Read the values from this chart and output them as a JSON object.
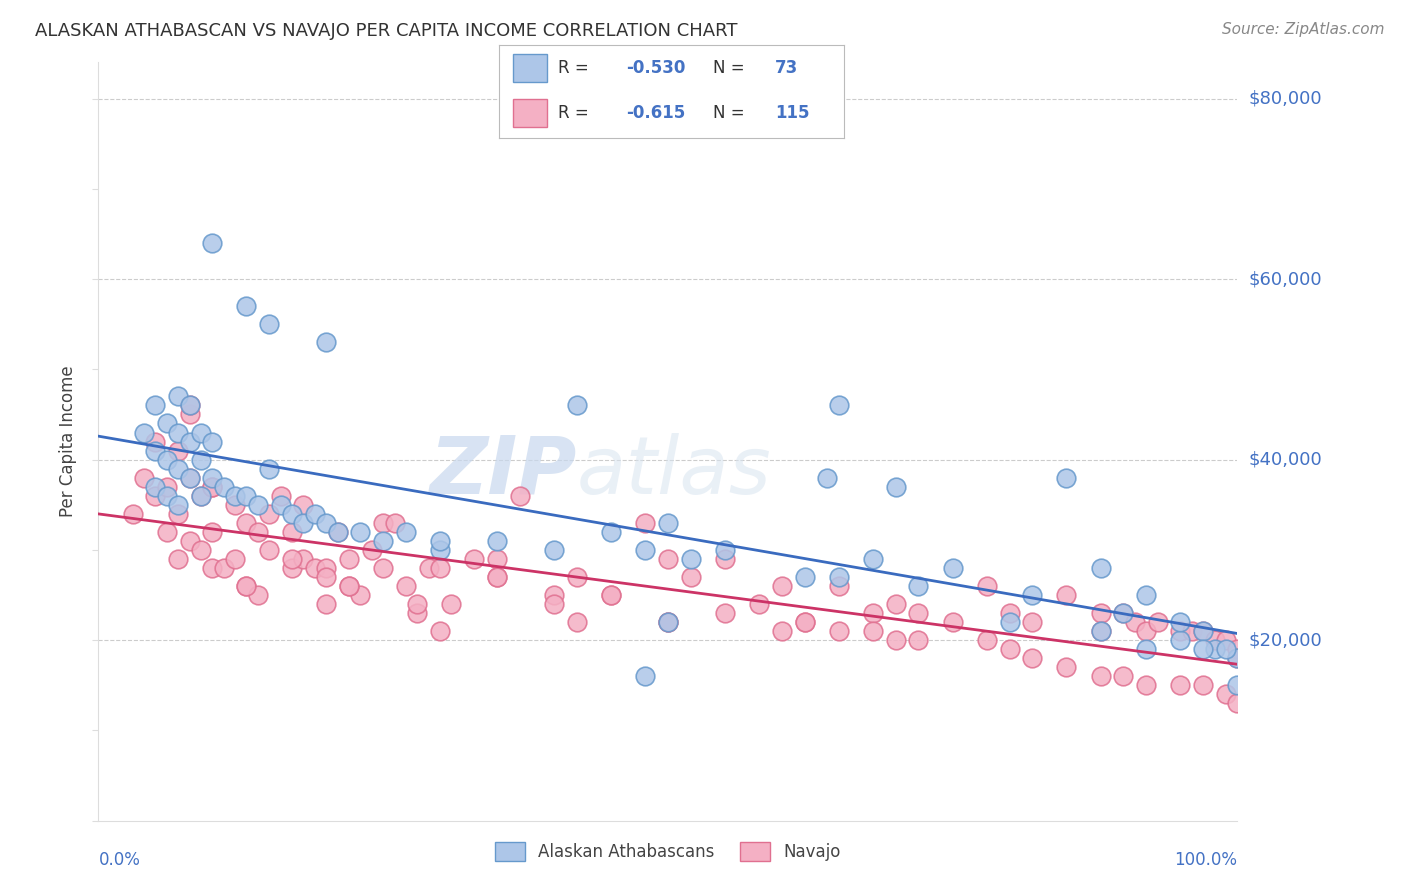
{
  "title": "ALASKAN ATHABASCAN VS NAVAJO PER CAPITA INCOME CORRELATION CHART",
  "source": "Source: ZipAtlas.com",
  "ylabel": "Per Capita Income",
  "ytick_color": "#4472c4",
  "watermark_text": "ZIPatlas",
  "blue_line_color": "#3a6bbf",
  "pink_line_color": "#cc3366",
  "scatter_blue_color": "#adc6e8",
  "scatter_pink_color": "#f4b0c4",
  "scatter_blue_edge": "#6699cc",
  "scatter_pink_edge": "#e07090",
  "blue_R": -0.53,
  "blue_N": 73,
  "pink_R": -0.615,
  "pink_N": 115,
  "blue_scatter_x": [
    0.04,
    0.05,
    0.05,
    0.05,
    0.06,
    0.06,
    0.06,
    0.07,
    0.07,
    0.07,
    0.07,
    0.08,
    0.08,
    0.08,
    0.09,
    0.09,
    0.09,
    0.1,
    0.1,
    0.11,
    0.12,
    0.13,
    0.14,
    0.15,
    0.16,
    0.17,
    0.18,
    0.19,
    0.2,
    0.21,
    0.23,
    0.25,
    0.27,
    0.3,
    0.35,
    0.4,
    0.42,
    0.45,
    0.48,
    0.5,
    0.52,
    0.55,
    0.62,
    0.64,
    0.65,
    0.68,
    0.7,
    0.72,
    0.75,
    0.8,
    0.82,
    0.85,
    0.88,
    0.9,
    0.92,
    0.95,
    0.97,
    0.98,
    1.0,
    0.1,
    0.13,
    0.15,
    0.2,
    0.3,
    0.48,
    0.5,
    0.65,
    0.88,
    0.92,
    0.95,
    0.97,
    0.99,
    1.0
  ],
  "blue_scatter_y": [
    43000,
    46000,
    41000,
    37000,
    44000,
    40000,
    36000,
    47000,
    43000,
    39000,
    35000,
    46000,
    42000,
    38000,
    43000,
    40000,
    36000,
    42000,
    38000,
    37000,
    36000,
    36000,
    35000,
    39000,
    35000,
    34000,
    33000,
    34000,
    33000,
    32000,
    32000,
    31000,
    32000,
    30000,
    31000,
    30000,
    46000,
    32000,
    30000,
    33000,
    29000,
    30000,
    27000,
    38000,
    27000,
    29000,
    37000,
    26000,
    28000,
    22000,
    25000,
    38000,
    28000,
    23000,
    25000,
    20000,
    21000,
    19000,
    18000,
    64000,
    57000,
    55000,
    53000,
    31000,
    16000,
    22000,
    46000,
    21000,
    19000,
    22000,
    19000,
    19000,
    15000
  ],
  "pink_scatter_x": [
    0.03,
    0.04,
    0.05,
    0.05,
    0.06,
    0.06,
    0.07,
    0.07,
    0.07,
    0.08,
    0.08,
    0.08,
    0.09,
    0.09,
    0.1,
    0.1,
    0.1,
    0.11,
    0.12,
    0.12,
    0.13,
    0.13,
    0.14,
    0.14,
    0.15,
    0.15,
    0.16,
    0.17,
    0.17,
    0.18,
    0.18,
    0.19,
    0.2,
    0.2,
    0.21,
    0.22,
    0.23,
    0.24,
    0.25,
    0.25,
    0.26,
    0.27,
    0.28,
    0.29,
    0.3,
    0.31,
    0.33,
    0.35,
    0.37,
    0.4,
    0.42,
    0.45,
    0.48,
    0.5,
    0.5,
    0.52,
    0.55,
    0.58,
    0.6,
    0.62,
    0.65,
    0.68,
    0.7,
    0.72,
    0.75,
    0.78,
    0.8,
    0.82,
    0.85,
    0.88,
    0.88,
    0.9,
    0.91,
    0.92,
    0.93,
    0.95,
    0.96,
    0.97,
    0.98,
    0.99,
    1.0,
    1.0,
    0.08,
    0.1,
    0.2,
    0.22,
    0.3,
    0.35,
    0.42,
    0.45,
    0.5,
    0.55,
    0.6,
    0.62,
    0.65,
    0.68,
    0.7,
    0.72,
    0.78,
    0.8,
    0.82,
    0.85,
    0.88,
    0.9,
    0.92,
    0.95,
    0.97,
    0.99,
    1.0,
    0.13,
    0.17,
    0.22,
    0.28,
    0.35,
    0.4
  ],
  "pink_scatter_y": [
    34000,
    38000,
    42000,
    36000,
    37000,
    32000,
    41000,
    34000,
    29000,
    38000,
    45000,
    31000,
    36000,
    30000,
    37000,
    32000,
    28000,
    28000,
    35000,
    29000,
    33000,
    26000,
    32000,
    25000,
    34000,
    30000,
    36000,
    32000,
    28000,
    35000,
    29000,
    28000,
    28000,
    24000,
    32000,
    29000,
    25000,
    30000,
    33000,
    28000,
    33000,
    26000,
    23000,
    28000,
    28000,
    24000,
    29000,
    29000,
    36000,
    25000,
    27000,
    25000,
    33000,
    29000,
    22000,
    27000,
    29000,
    24000,
    26000,
    22000,
    26000,
    23000,
    24000,
    23000,
    22000,
    26000,
    23000,
    22000,
    25000,
    23000,
    21000,
    23000,
    22000,
    21000,
    22000,
    21000,
    21000,
    21000,
    20000,
    20000,
    19000,
    18000,
    46000,
    37000,
    27000,
    26000,
    21000,
    27000,
    22000,
    25000,
    22000,
    23000,
    21000,
    22000,
    21000,
    21000,
    20000,
    20000,
    20000,
    19000,
    18000,
    17000,
    16000,
    16000,
    15000,
    15000,
    15000,
    14000,
    13000,
    26000,
    29000,
    26000,
    24000,
    27000,
    24000
  ]
}
